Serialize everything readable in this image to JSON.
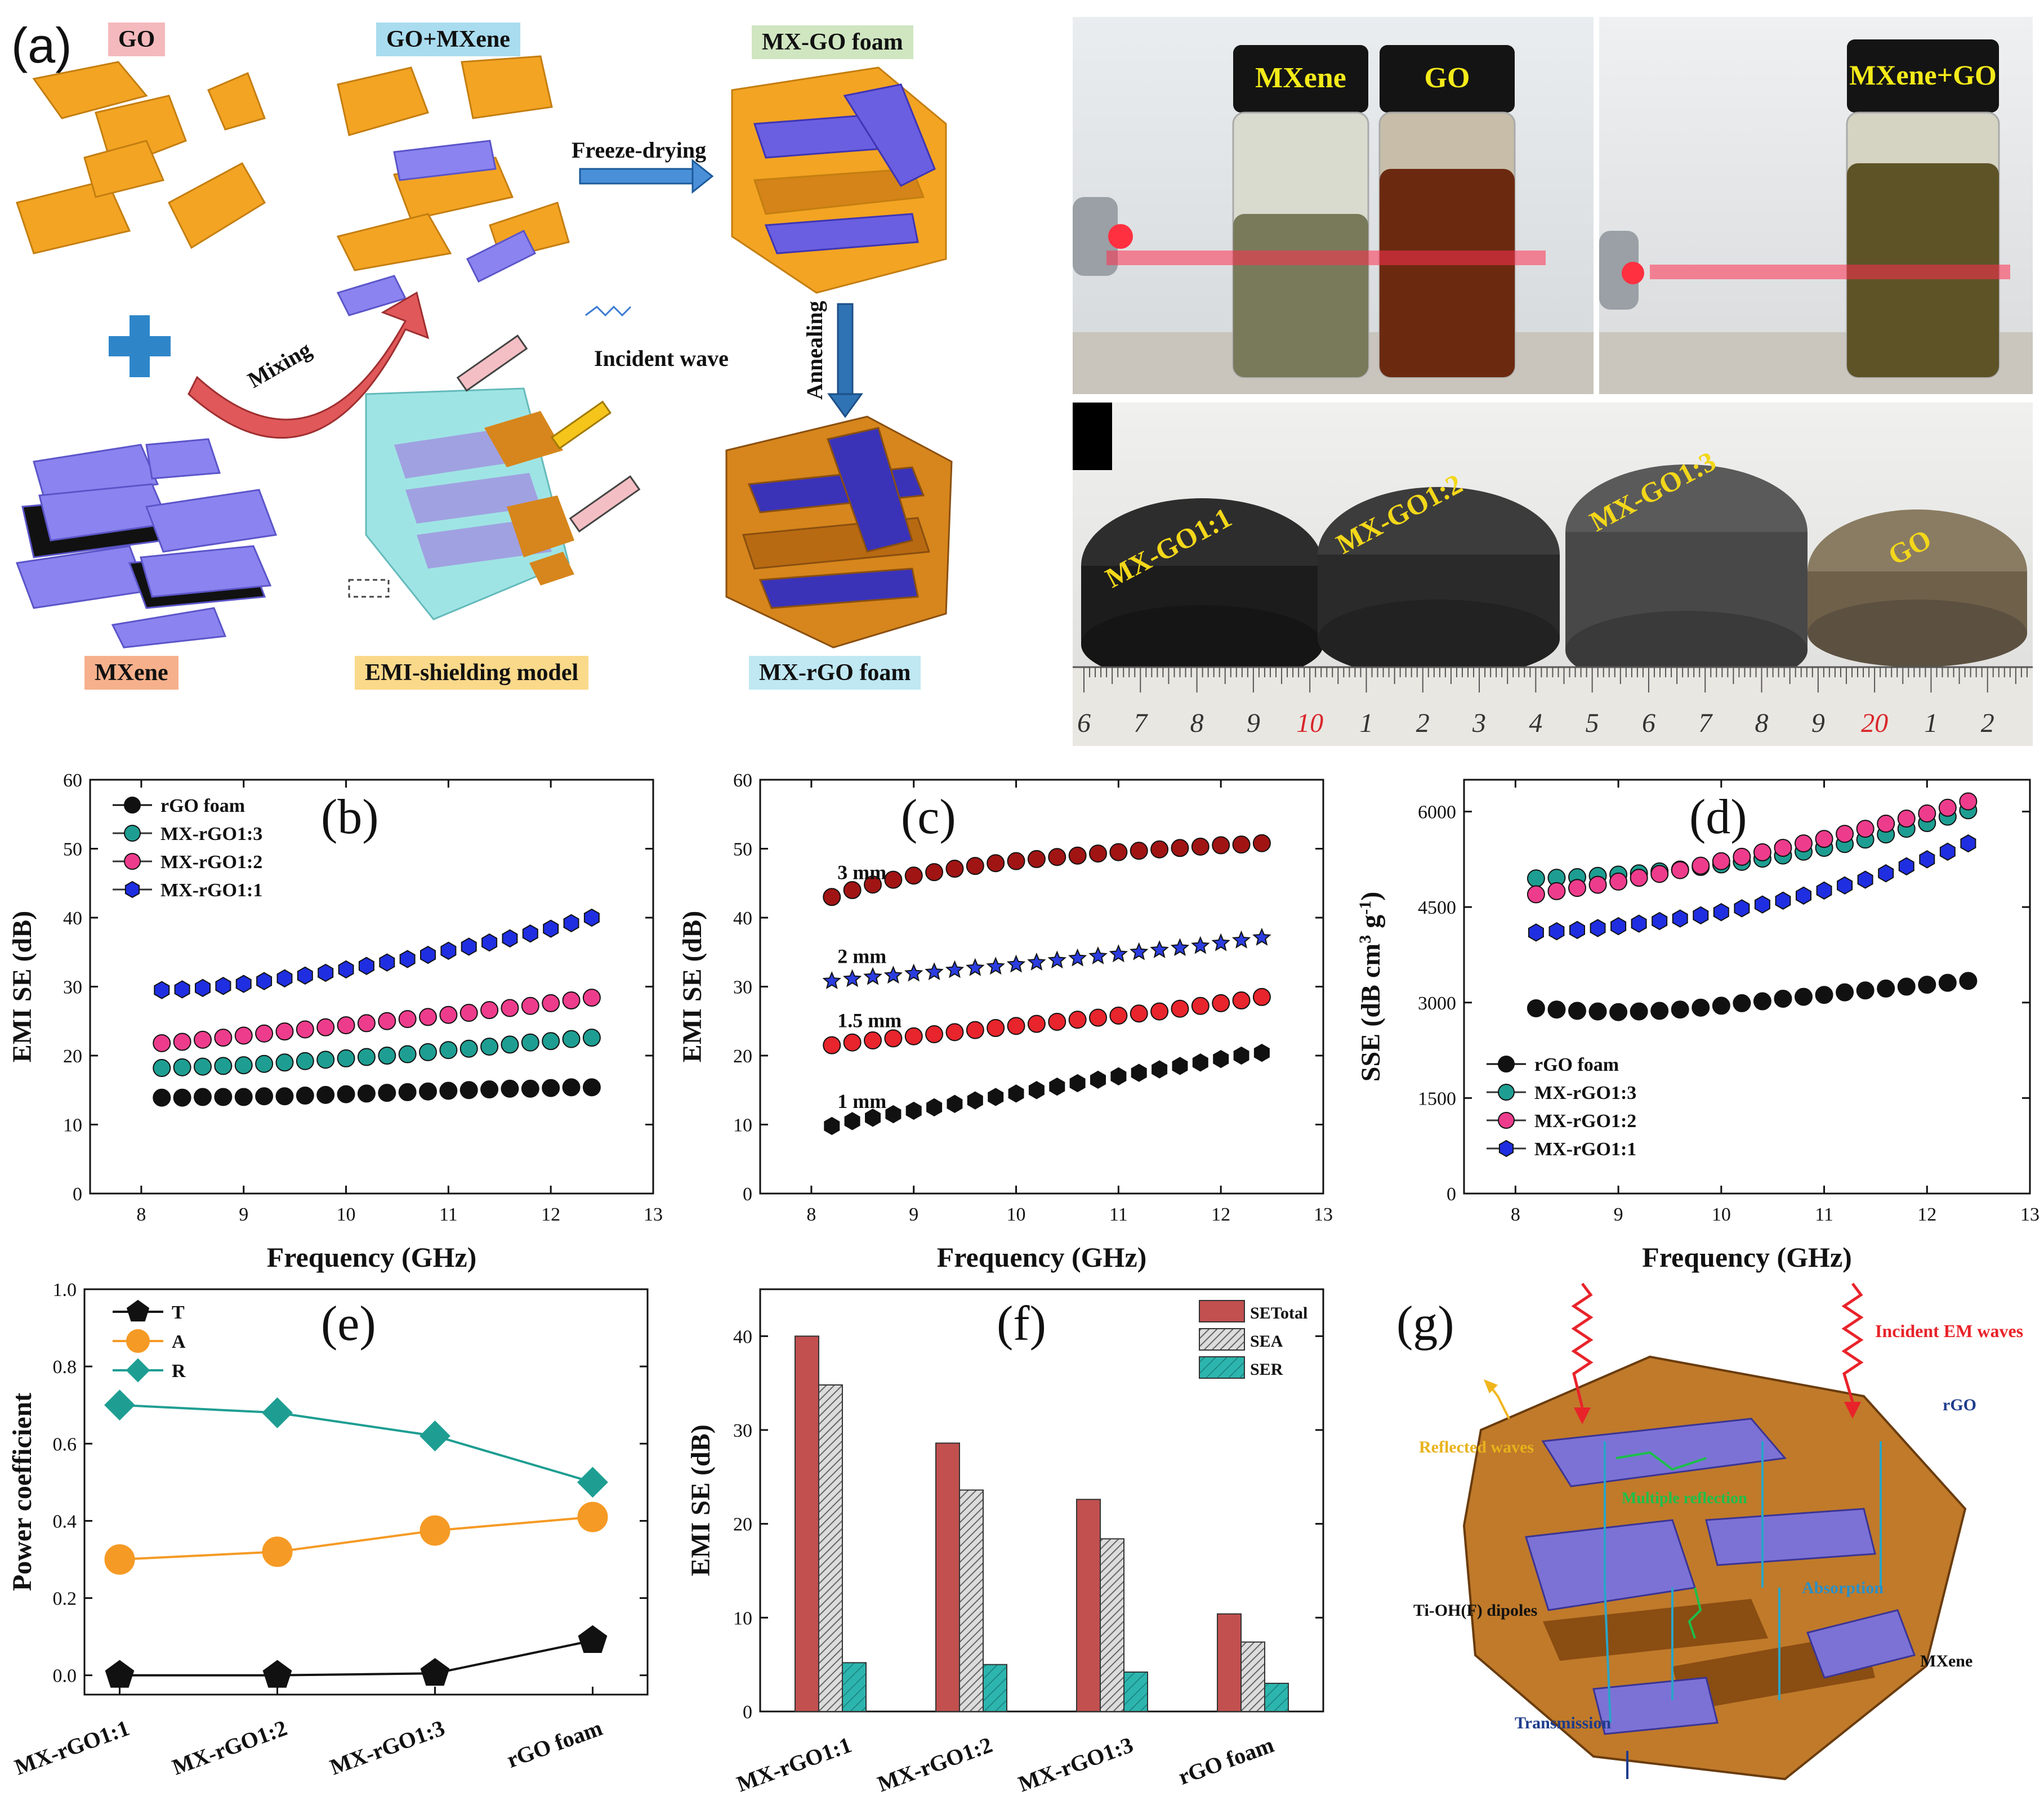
{
  "panel_a": {
    "letter": "(a)",
    "labels": {
      "go": "GO",
      "go_mxene": "GO+MXene",
      "mxgo_foam": "MX-GO foam",
      "mxene": "MXene",
      "emi_model": "EMI-shielding model",
      "mxrgo_foam": "MX-rGO foam",
      "freeze_drying": "Freeze-drying",
      "mixing": "Mixing",
      "annealing": "Annealing",
      "incident_wave": "Incident wave"
    },
    "label_colors": {
      "go": "#f4b9bc",
      "go_mxene": "#a9dcef",
      "mxgo_foam": "#cfe6c1",
      "mxene": "#f6b18c",
      "emi_model": "#fad98a",
      "mxrgo_foam": "#bfe8f3"
    }
  },
  "photos": {
    "vials_left": {
      "mxene": "MXene",
      "go": "GO"
    },
    "vials_right": {
      "mixed": "MXene+GO"
    },
    "foams": [
      "MX-GO1:1",
      "MX-GO1:2",
      "MX-GO1:3",
      "GO"
    ],
    "ruler_numbers": [
      "6",
      "7",
      "8",
      "9",
      "10",
      "1",
      "2",
      "3",
      "4",
      "5",
      "6",
      "7",
      "8",
      "9",
      "20",
      "1",
      "2"
    ]
  },
  "panel_g": {
    "letter": "(g)",
    "labels": {
      "incident": "Incident EM waves",
      "reflected": "Reflected waves",
      "rgo": "rGO",
      "multiple": "Multiple reflection",
      "absorption": "Absorption",
      "dipoles": "Ti-OH(F) dipoles",
      "mxene": "MXene",
      "transmission": "Transmission"
    }
  },
  "chart_data": [
    {
      "id": "b",
      "letter": "(b)",
      "type": "scatter",
      "xlabel": "Frequency (GHz)",
      "ylabel": "EMI SE (dB)",
      "xlim": [
        7.5,
        13
      ],
      "ylim": [
        0,
        60
      ],
      "xticks": [
        8,
        9,
        10,
        11,
        12,
        13
      ],
      "yticks": [
        0,
        10,
        20,
        30,
        40,
        50,
        60
      ],
      "legend_position": "top-left",
      "x": [
        8.2,
        8.4,
        8.6,
        8.8,
        9.0,
        9.2,
        9.4,
        9.6,
        9.8,
        10.0,
        10.2,
        10.4,
        10.6,
        10.8,
        11.0,
        11.2,
        11.4,
        11.6,
        11.8,
        12.0,
        12.2,
        12.4
      ],
      "series": [
        {
          "name": "rGO foam",
          "marker": "circle",
          "color": "#111111",
          "values": [
            13.9,
            13.9,
            14.0,
            14.0,
            14.0,
            14.1,
            14.1,
            14.2,
            14.3,
            14.4,
            14.5,
            14.6,
            14.7,
            14.8,
            14.9,
            15.0,
            15.1,
            15.2,
            15.2,
            15.3,
            15.4,
            15.4
          ]
        },
        {
          "name": "MX-rGO1:3",
          "marker": "circle",
          "color": "#1e9e92",
          "values": [
            18.2,
            18.3,
            18.4,
            18.5,
            18.6,
            18.8,
            19.0,
            19.2,
            19.4,
            19.6,
            19.8,
            20.0,
            20.2,
            20.5,
            20.8,
            21.0,
            21.3,
            21.6,
            21.9,
            22.1,
            22.4,
            22.6
          ]
        },
        {
          "name": "MX-rGO1:2",
          "marker": "circle",
          "color": "#ee3c8c",
          "values": [
            21.8,
            22.0,
            22.3,
            22.6,
            22.9,
            23.2,
            23.5,
            23.8,
            24.1,
            24.4,
            24.7,
            25.0,
            25.3,
            25.6,
            25.9,
            26.2,
            26.6,
            26.9,
            27.2,
            27.6,
            28.0,
            28.4
          ]
        },
        {
          "name": "MX-rGO1:1",
          "marker": "hexagon",
          "color": "#1f2ee0",
          "values": [
            29.5,
            29.6,
            29.8,
            30.1,
            30.4,
            30.8,
            31.2,
            31.6,
            32.0,
            32.5,
            33.0,
            33.5,
            34.0,
            34.6,
            35.2,
            35.8,
            36.4,
            37.0,
            37.7,
            38.4,
            39.2,
            40.0
          ]
        }
      ]
    },
    {
      "id": "c",
      "letter": "(c)",
      "type": "scatter",
      "xlabel": "Frequency (GHz)",
      "ylabel": "EMI SE (dB)",
      "xlim": [
        7.5,
        13
      ],
      "ylim": [
        0,
        60
      ],
      "xticks": [
        8,
        9,
        10,
        11,
        12,
        13
      ],
      "yticks": [
        0,
        10,
        20,
        30,
        40,
        50,
        60
      ],
      "x": [
        8.2,
        8.4,
        8.6,
        8.8,
        9.0,
        9.2,
        9.4,
        9.6,
        9.8,
        10.0,
        10.2,
        10.4,
        10.6,
        10.8,
        11.0,
        11.2,
        11.4,
        11.6,
        11.8,
        12.0,
        12.2,
        12.4
      ],
      "series": [
        {
          "name": "3 mm",
          "marker": "circle",
          "color": "#a11414",
          "values": [
            43.0,
            44.0,
            44.8,
            45.5,
            46.1,
            46.6,
            47.1,
            47.5,
            47.9,
            48.2,
            48.5,
            48.8,
            49.0,
            49.3,
            49.5,
            49.7,
            49.9,
            50.1,
            50.3,
            50.5,
            50.6,
            50.8
          ]
        },
        {
          "name": "2 mm",
          "marker": "star",
          "color": "#2b3de0",
          "values": [
            30.8,
            31.1,
            31.4,
            31.6,
            31.9,
            32.1,
            32.4,
            32.7,
            32.9,
            33.2,
            33.5,
            33.8,
            34.1,
            34.4,
            34.7,
            35.0,
            35.3,
            35.6,
            35.9,
            36.3,
            36.7,
            37.1
          ]
        },
        {
          "name": "1.5 mm",
          "marker": "circle",
          "color": "#e8242c",
          "values": [
            21.5,
            21.9,
            22.2,
            22.5,
            22.8,
            23.1,
            23.4,
            23.7,
            24.0,
            24.3,
            24.6,
            24.9,
            25.2,
            25.5,
            25.8,
            26.1,
            26.4,
            26.8,
            27.2,
            27.6,
            28.0,
            28.5
          ]
        },
        {
          "name": "1 mm",
          "marker": "hexagon",
          "color": "#111111",
          "values": [
            9.8,
            10.5,
            11.0,
            11.5,
            12.0,
            12.5,
            13.0,
            13.5,
            14.0,
            14.5,
            15.0,
            15.5,
            16.0,
            16.5,
            17.0,
            17.5,
            18.0,
            18.5,
            19.0,
            19.5,
            20.0,
            20.4
          ]
        }
      ]
    },
    {
      "id": "d",
      "letter": "(d)",
      "type": "scatter",
      "xlabel": "Frequency (GHz)",
      "ylabel": "SSE (dB cm3 g-1)",
      "ylabel_parts": [
        "SSE (dB cm",
        "3",
        " g",
        "-1",
        ")"
      ],
      "xlim": [
        7.5,
        13
      ],
      "ylim": [
        0,
        6500
      ],
      "xticks": [
        8,
        9,
        10,
        11,
        12,
        13
      ],
      "yticks": [
        0,
        1500,
        3000,
        4500,
        6000
      ],
      "legend_position": "bottom-left",
      "x": [
        8.2,
        8.4,
        8.6,
        8.8,
        9.0,
        9.2,
        9.4,
        9.6,
        9.8,
        10.0,
        10.2,
        10.4,
        10.6,
        10.8,
        11.0,
        11.2,
        11.4,
        11.6,
        11.8,
        12.0,
        12.2,
        12.4
      ],
      "series": [
        {
          "name": "rGO foam",
          "marker": "circle",
          "color": "#111111",
          "values": [
            2910,
            2890,
            2870,
            2860,
            2850,
            2860,
            2870,
            2890,
            2920,
            2950,
            2990,
            3020,
            3060,
            3090,
            3120,
            3160,
            3190,
            3220,
            3250,
            3280,
            3310,
            3340
          ]
        },
        {
          "name": "MX-rGO1:3",
          "marker": "circle",
          "color": "#1e9e92",
          "values": [
            4950,
            4960,
            4970,
            4990,
            5010,
            5030,
            5060,
            5090,
            5130,
            5170,
            5210,
            5260,
            5310,
            5370,
            5430,
            5490,
            5560,
            5640,
            5730,
            5820,
            5920,
            6020
          ]
        },
        {
          "name": "MX-rGO1:2",
          "marker": "circle",
          "color": "#ee3c8c",
          "values": [
            4700,
            4750,
            4800,
            4850,
            4900,
            4960,
            5020,
            5080,
            5150,
            5220,
            5290,
            5360,
            5430,
            5500,
            5570,
            5650,
            5730,
            5810,
            5890,
            5970,
            6060,
            6160
          ]
        },
        {
          "name": "MX-rGO1:1",
          "marker": "hexagon",
          "color": "#1f2ee0",
          "values": [
            4100,
            4120,
            4140,
            4170,
            4200,
            4240,
            4280,
            4320,
            4370,
            4420,
            4480,
            4540,
            4600,
            4680,
            4760,
            4840,
            4930,
            5030,
            5140,
            5250,
            5370,
            5500
          ]
        }
      ]
    },
    {
      "id": "e",
      "letter": "(e)",
      "type": "line",
      "ylabel": "Power coefficient",
      "ylim": [
        -0.05,
        1.0
      ],
      "yticks": [
        0.0,
        0.2,
        0.4,
        0.6,
        0.8,
        1.0
      ],
      "categories": [
        "MX-rGO1:1",
        "MX-rGO1:2",
        "MX-rGO1:3",
        "rGO foam"
      ],
      "legend_position": "top-left",
      "series": [
        {
          "name": "T",
          "marker": "pentagon",
          "color": "#111111",
          "values": [
            0.0,
            0.0,
            0.005,
            0.09
          ]
        },
        {
          "name": "A",
          "marker": "circle",
          "color": "#f59a25",
          "values": [
            0.3,
            0.32,
            0.375,
            0.41
          ]
        },
        {
          "name": "R",
          "marker": "diamond",
          "color": "#1e9e92",
          "values": [
            0.7,
            0.68,
            0.62,
            0.5
          ]
        }
      ]
    },
    {
      "id": "f",
      "letter": "(f)",
      "type": "bar",
      "ylabel": "EMI SE (dB)",
      "ylim": [
        0,
        45
      ],
      "yticks": [
        0,
        10,
        20,
        30,
        40
      ],
      "categories": [
        "MX-rGO1:1",
        "MX-rGO1:2",
        "MX-rGO1:3",
        "rGO foam"
      ],
      "legend_position": "top-right",
      "series": [
        {
          "name": "SETotal",
          "color": "#c1504f",
          "values": [
            40.0,
            28.6,
            22.6,
            10.4
          ]
        },
        {
          "name": "SEA",
          "color": "#bdbdbd",
          "values": [
            34.8,
            23.6,
            18.4,
            7.4
          ]
        },
        {
          "name": "SER",
          "color": "#2cb5ae",
          "values": [
            5.2,
            5.0,
            4.2,
            3.0
          ]
        }
      ]
    }
  ]
}
